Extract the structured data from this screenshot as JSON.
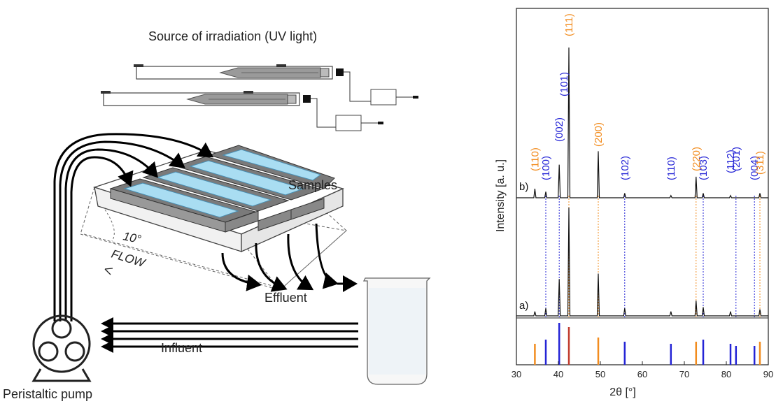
{
  "setup": {
    "title": "Source of irradiation (UV light)",
    "samples_label": "Samples",
    "angle_label": "10°",
    "flow_label": "FLOW",
    "effluent_label": "Effluent",
    "influent_label": "Influent",
    "pump_label": "Peristaltic pump",
    "colors": {
      "sample_fill": "#a9ddf2",
      "line": "#000000",
      "frame": "#555555"
    }
  },
  "chart_data": {
    "type": "line",
    "xlabel": "2θ [°]",
    "ylabel": "Intensity [a. u.]",
    "xlim": [
      30,
      90
    ],
    "x_ticks": [
      30,
      40,
      50,
      60,
      70,
      80,
      90
    ],
    "grid": false,
    "series": [
      {
        "name": "b)",
        "peaks": [
          [
            34.4,
            0.06
          ],
          [
            37.0,
            0.04
          ],
          [
            40.2,
            0.22
          ],
          [
            42.5,
            1.0
          ],
          [
            49.5,
            0.31
          ],
          [
            55.8,
            0.03
          ],
          [
            66.8,
            0.015
          ],
          [
            72.8,
            0.14
          ],
          [
            74.5,
            0.03
          ],
          [
            81.0,
            0.015
          ],
          [
            88.0,
            0.03
          ]
        ]
      },
      {
        "name": "a)",
        "peaks": [
          [
            34.4,
            0.04
          ],
          [
            37.0,
            0.07
          ],
          [
            40.2,
            0.34
          ],
          [
            42.5,
            1.0
          ],
          [
            49.5,
            0.39
          ],
          [
            55.8,
            0.07
          ],
          [
            66.8,
            0.04
          ],
          [
            72.8,
            0.14
          ],
          [
            74.5,
            0.08
          ],
          [
            81.0,
            0.04
          ],
          [
            88.0,
            0.06
          ]
        ]
      }
    ],
    "annotations": [
      {
        "text": "(110)",
        "x": 34.4,
        "color": "#f28c1e"
      },
      {
        "text": "(100)",
        "x": 37.0,
        "color": "#2424d6"
      },
      {
        "text": "(002)",
        "x": 40.2,
        "color": "#2424d6"
      },
      {
        "text": "(101)",
        "x": 41.3,
        "color": "#2424d6"
      },
      {
        "text": "(111)",
        "x": 42.5,
        "color": "#f28c1e"
      },
      {
        "text": "(200)",
        "x": 49.5,
        "color": "#f28c1e"
      },
      {
        "text": "(102)",
        "x": 55.8,
        "color": "#2424d6"
      },
      {
        "text": "(110)",
        "x": 66.8,
        "color": "#2424d6"
      },
      {
        "text": "(220)",
        "x": 72.8,
        "color": "#f28c1e"
      },
      {
        "text": "(103)",
        "x": 74.5,
        "color": "#2424d6"
      },
      {
        "text": "(112)",
        "x": 81.0,
        "color": "#2424d6"
      },
      {
        "text": "(201)",
        "x": 82.3,
        "color": "#2424d6"
      },
      {
        "text": "(004)",
        "x": 86.7,
        "color": "#2424d6"
      },
      {
        "text": "(311)",
        "x": 88.0,
        "color": "#f28c1e"
      }
    ],
    "reference_lines": [
      {
        "x": 34.4,
        "h": 0.5,
        "color": "#f28c1e"
      },
      {
        "x": 37.0,
        "h": 0.6,
        "color": "#2424d6"
      },
      {
        "x": 40.2,
        "h": 1.0,
        "color": "#2424d6"
      },
      {
        "x": 42.5,
        "h": 0.9,
        "color": "#c0392b"
      },
      {
        "x": 49.5,
        "h": 0.65,
        "color": "#f28c1e"
      },
      {
        "x": 55.8,
        "h": 0.55,
        "color": "#2424d6"
      },
      {
        "x": 66.8,
        "h": 0.5,
        "color": "#2424d6"
      },
      {
        "x": 72.8,
        "h": 0.55,
        "color": "#f28c1e"
      },
      {
        "x": 74.5,
        "h": 0.6,
        "color": "#2424d6"
      },
      {
        "x": 81.0,
        "h": 0.5,
        "color": "#2424d6"
      },
      {
        "x": 82.3,
        "h": 0.45,
        "color": "#2424d6"
      },
      {
        "x": 86.7,
        "h": 0.45,
        "color": "#2424d6"
      },
      {
        "x": 88.0,
        "h": 0.55,
        "color": "#f28c1e"
      }
    ],
    "dotted_guides": [
      {
        "x": 37.0,
        "color": "#2424d6"
      },
      {
        "x": 40.2,
        "color": "#2424d6"
      },
      {
        "x": 42.5,
        "color": "#f28c1e"
      },
      {
        "x": 49.5,
        "color": "#f28c1e"
      },
      {
        "x": 55.8,
        "color": "#2424d6"
      },
      {
        "x": 72.8,
        "color": "#f28c1e"
      },
      {
        "x": 74.5,
        "color": "#2424d6"
      },
      {
        "x": 82.3,
        "color": "#2424d6"
      },
      {
        "x": 86.7,
        "color": "#2424d6"
      },
      {
        "x": 88.0,
        "color": "#f28c1e"
      }
    ]
  }
}
